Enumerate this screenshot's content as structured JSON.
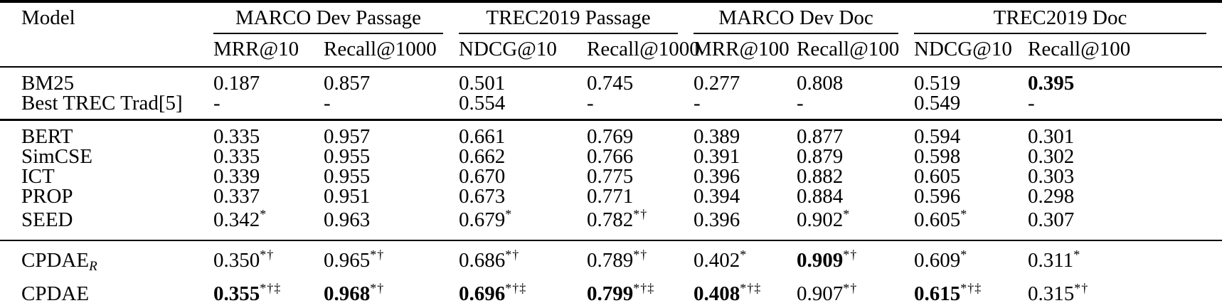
{
  "table": {
    "model_header": "Model",
    "groups": [
      {
        "label": "MARCO Dev Passage",
        "cols": [
          "MRR@10",
          "Recall@1000"
        ]
      },
      {
        "label": "TREC2019 Passage",
        "cols": [
          "NDCG@10",
          "Recall@1000"
        ]
      },
      {
        "label": "MARCO Dev Doc",
        "cols": [
          "MRR@100",
          "Recall@100"
        ]
      },
      {
        "label": "TREC2019 Doc",
        "cols": [
          "NDCG@10",
          "Recall@100"
        ]
      }
    ],
    "sections": [
      {
        "rows": [
          {
            "model": "BM25",
            "cells": [
              {
                "v": "0.187"
              },
              {
                "v": "0.857"
              },
              {
                "v": "0.501"
              },
              {
                "v": "0.745"
              },
              {
                "v": "0.277"
              },
              {
                "v": "0.808"
              },
              {
                "v": "0.519"
              },
              {
                "v": "0.395",
                "bold": true
              }
            ]
          },
          {
            "model": "Best TREC Trad[5]",
            "cells": [
              {
                "v": "-"
              },
              {
                "v": "-"
              },
              {
                "v": "0.554"
              },
              {
                "v": "-"
              },
              {
                "v": "-"
              },
              {
                "v": "-"
              },
              {
                "v": "0.549"
              },
              {
                "v": "-"
              }
            ]
          }
        ]
      },
      {
        "rows": [
          {
            "model": "BERT",
            "cells": [
              {
                "v": "0.335"
              },
              {
                "v": "0.957"
              },
              {
                "v": "0.661"
              },
              {
                "v": "0.769"
              },
              {
                "v": "0.389"
              },
              {
                "v": "0.877"
              },
              {
                "v": "0.594"
              },
              {
                "v": "0.301"
              }
            ]
          },
          {
            "model": "SimCSE",
            "cells": [
              {
                "v": "0.335"
              },
              {
                "v": "0.955"
              },
              {
                "v": "0.662"
              },
              {
                "v": "0.766"
              },
              {
                "v": "0.391"
              },
              {
                "v": "0.879"
              },
              {
                "v": "0.598"
              },
              {
                "v": "0.302"
              }
            ]
          },
          {
            "model": "ICT",
            "cells": [
              {
                "v": "0.339"
              },
              {
                "v": "0.955"
              },
              {
                "v": "0.670"
              },
              {
                "v": "0.775"
              },
              {
                "v": "0.396"
              },
              {
                "v": "0.882"
              },
              {
                "v": "0.605"
              },
              {
                "v": "0.303"
              }
            ]
          },
          {
            "model": "PROP",
            "cells": [
              {
                "v": "0.337"
              },
              {
                "v": "0.951"
              },
              {
                "v": "0.673"
              },
              {
                "v": "0.771"
              },
              {
                "v": "0.394"
              },
              {
                "v": "0.884"
              },
              {
                "v": "0.596"
              },
              {
                "v": "0.298"
              }
            ]
          },
          {
            "model": "SEED",
            "cells": [
              {
                "v": "0.342",
                "sup": "*"
              },
              {
                "v": "0.963"
              },
              {
                "v": "0.679",
                "sup": "*"
              },
              {
                "v": "0.782",
                "sup": "*†"
              },
              {
                "v": "0.396"
              },
              {
                "v": "0.902",
                "sup": "*"
              },
              {
                "v": "0.605",
                "sup": "*"
              },
              {
                "v": "0.307"
              }
            ]
          }
        ]
      },
      {
        "rows": [
          {
            "model": "CPDAE",
            "model_sub": "R",
            "cells": [
              {
                "v": "0.350",
                "sup": "*†"
              },
              {
                "v": "0.965",
                "sup": "*†"
              },
              {
                "v": "0.686",
                "sup": "*†"
              },
              {
                "v": "0.789",
                "sup": "*†"
              },
              {
                "v": "0.402",
                "sup": "*"
              },
              {
                "v": "0.909",
                "sup": "*†",
                "bold": true
              },
              {
                "v": "0.609",
                "sup": "*"
              },
              {
                "v": "0.311",
                "sup": "*"
              }
            ]
          },
          {
            "model": "CPDAE",
            "cells": [
              {
                "v": "0.355",
                "sup": "*†‡",
                "bold": true
              },
              {
                "v": "0.968",
                "sup": "*†",
                "bold": true
              },
              {
                "v": "0.696",
                "sup": "*†‡",
                "bold": true
              },
              {
                "v": "0.799",
                "sup": "*†‡",
                "bold": true
              },
              {
                "v": "0.408",
                "sup": "*†‡",
                "bold": true
              },
              {
                "v": "0.907",
                "sup": "*†"
              },
              {
                "v": "0.615",
                "sup": "*†‡",
                "bold": true
              },
              {
                "v": "0.315",
                "sup": "*†"
              }
            ]
          }
        ]
      }
    ]
  }
}
